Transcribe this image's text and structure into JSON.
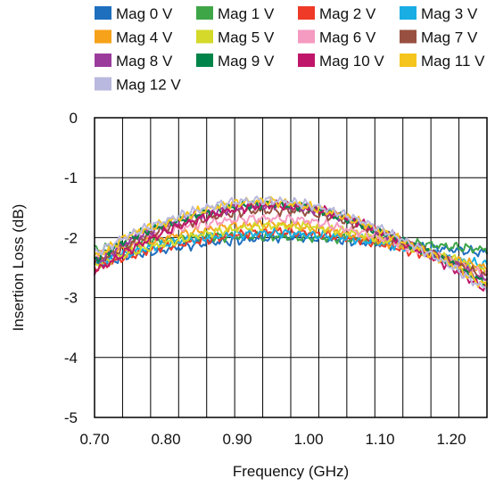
{
  "chart_data": {
    "type": "line",
    "title": "",
    "xlabel": "Frequency (GHz)",
    "ylabel": "Insertion Loss (dB)",
    "xlim": [
      0.7,
      1.25
    ],
    "ylim": [
      -5,
      0
    ],
    "x_ticks": [
      "0.70",
      "0.80",
      "0.90",
      "1.00",
      "1.10",
      "1.20"
    ],
    "y_ticks": [
      "0",
      "-1",
      "-2",
      "-3",
      "-4",
      "-5"
    ],
    "grid": true,
    "legend_position": "top",
    "x": [
      0.7,
      0.75,
      0.8,
      0.85,
      0.9,
      0.95,
      1.0,
      1.05,
      1.1,
      1.15,
      1.2,
      1.25
    ],
    "series": [
      {
        "name": "Mag 0 V",
        "color": "#1f6fbf",
        "values": [
          -2.45,
          -2.3,
          -2.2,
          -2.1,
          -2.05,
          -2.0,
          -2.0,
          -2.05,
          -2.1,
          -2.15,
          -2.2,
          -2.25
        ]
      },
      {
        "name": "Mag 1 V",
        "color": "#3fa648",
        "values": [
          -2.2,
          -2.1,
          -2.05,
          -2.0,
          -1.98,
          -1.98,
          -2.0,
          -2.02,
          -2.05,
          -2.1,
          -2.15,
          -2.2
        ]
      },
      {
        "name": "Mag 2 V",
        "color": "#ee3a27",
        "values": [
          -2.5,
          -2.3,
          -2.15,
          -2.05,
          -1.95,
          -1.9,
          -1.92,
          -2.0,
          -2.1,
          -2.25,
          -2.4,
          -2.55
        ]
      },
      {
        "name": "Mag 3 V",
        "color": "#19aee3",
        "values": [
          -2.4,
          -2.25,
          -2.1,
          -2.0,
          -1.95,
          -1.92,
          -1.95,
          -2.0,
          -2.08,
          -2.2,
          -2.35,
          -2.45
        ]
      },
      {
        "name": "Mag 4 V",
        "color": "#f7a21b",
        "values": [
          -2.35,
          -2.15,
          -2.0,
          -1.88,
          -1.8,
          -1.78,
          -1.82,
          -1.92,
          -2.05,
          -2.2,
          -2.35,
          -2.5
        ]
      },
      {
        "name": "Mag 5 V",
        "color": "#d4d92a",
        "values": [
          -2.45,
          -2.25,
          -2.1,
          -1.95,
          -1.85,
          -1.8,
          -1.82,
          -1.9,
          -2.02,
          -2.18,
          -2.35,
          -2.55
        ]
      },
      {
        "name": "Mag 6 V",
        "color": "#f59ac0",
        "values": [
          -2.3,
          -2.05,
          -1.9,
          -1.78,
          -1.7,
          -1.68,
          -1.72,
          -1.85,
          -2.0,
          -2.2,
          -2.4,
          -2.6
        ]
      },
      {
        "name": "Mag 7 V",
        "color": "#985040",
        "values": [
          -2.4,
          -2.1,
          -1.85,
          -1.7,
          -1.58,
          -1.55,
          -1.58,
          -1.72,
          -1.92,
          -2.15,
          -2.4,
          -2.65
        ]
      },
      {
        "name": "Mag 8 V",
        "color": "#9b3c9c",
        "values": [
          -2.4,
          -2.05,
          -1.8,
          -1.62,
          -1.5,
          -1.45,
          -1.52,
          -1.68,
          -1.9,
          -2.15,
          -2.42,
          -2.7
        ]
      },
      {
        "name": "Mag 9 V",
        "color": "#00844a",
        "values": [
          -2.35,
          -2.0,
          -1.78,
          -1.6,
          -1.48,
          -1.45,
          -1.5,
          -1.68,
          -1.9,
          -2.15,
          -2.45,
          -2.75
        ]
      },
      {
        "name": "Mag 10 V",
        "color": "#c0166a",
        "values": [
          -2.55,
          -2.2,
          -1.9,
          -1.68,
          -1.52,
          -1.46,
          -1.5,
          -1.66,
          -1.9,
          -2.18,
          -2.5,
          -2.85
        ]
      },
      {
        "name": "Mag 11 V",
        "color": "#f5c51e",
        "values": [
          -2.3,
          -1.95,
          -1.75,
          -1.55,
          -1.42,
          -1.4,
          -1.48,
          -1.65,
          -1.88,
          -2.15,
          -2.45,
          -2.8
        ]
      },
      {
        "name": "Mag 12 V",
        "color": "#b9b8de",
        "values": [
          -2.25,
          -1.95,
          -1.72,
          -1.52,
          -1.4,
          -1.38,
          -1.45,
          -1.62,
          -1.85,
          -2.15,
          -2.48,
          -2.85
        ]
      }
    ]
  }
}
